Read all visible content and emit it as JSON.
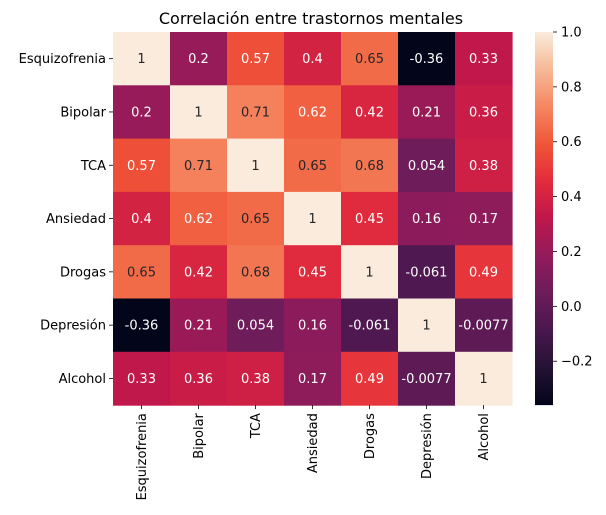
{
  "chart_data": {
    "type": "heatmap",
    "title": "Correlación entre trastornos mentales",
    "row_labels": [
      "Esquizofrenia",
      "Bipolar",
      "TCA",
      "Ansiedad",
      "Drogas",
      "Depresión",
      "Alcohol"
    ],
    "col_labels": [
      "Esquizofrenia",
      "Bipolar",
      "TCA",
      "Ansiedad",
      "Drogas",
      "Depresión",
      "Alcohol"
    ],
    "values": [
      [
        1,
        0.2,
        0.57,
        0.4,
        0.65,
        -0.36,
        0.33
      ],
      [
        0.2,
        1,
        0.71,
        0.62,
        0.42,
        0.21,
        0.36
      ],
      [
        0.57,
        0.71,
        1,
        0.65,
        0.68,
        0.054,
        0.38
      ],
      [
        0.4,
        0.62,
        0.65,
        1,
        0.45,
        0.16,
        0.17
      ],
      [
        0.65,
        0.42,
        0.68,
        0.45,
        1,
        -0.061,
        0.49
      ],
      [
        -0.36,
        0.21,
        0.054,
        0.16,
        -0.061,
        1,
        -0.0077
      ],
      [
        0.33,
        0.36,
        0.38,
        0.17,
        0.49,
        -0.0077,
        1
      ]
    ],
    "annotations": [
      [
        "1",
        "0.2",
        "0.57",
        "0.4",
        "0.65",
        "-0.36",
        "0.33"
      ],
      [
        "0.2",
        "1",
        "0.71",
        "0.62",
        "0.42",
        "0.21",
        "0.36"
      ],
      [
        "0.57",
        "0.71",
        "1",
        "0.65",
        "0.68",
        "0.054",
        "0.38"
      ],
      [
        "0.4",
        "0.62",
        "0.65",
        "1",
        "0.45",
        "0.16",
        "0.17"
      ],
      [
        "0.65",
        "0.42",
        "0.68",
        "0.45",
        "1",
        "-0.061",
        "0.49"
      ],
      [
        "-0.36",
        "0.21",
        "0.054",
        "0.16",
        "-0.061",
        "1",
        "-0.0077"
      ],
      [
        "0.33",
        "0.36",
        "0.38",
        "0.17",
        "0.49",
        "-0.0077",
        "1"
      ]
    ],
    "colormap": "rocket",
    "colorbar": {
      "range": [
        -0.36,
        1.0
      ],
      "ticks": [
        -0.2,
        0.0,
        0.2,
        0.4,
        0.6,
        0.8,
        1.0
      ],
      "tick_labels": [
        "−0.2",
        "0.0",
        "0.2",
        "0.4",
        "0.6",
        "0.8",
        "1.0"
      ]
    }
  }
}
